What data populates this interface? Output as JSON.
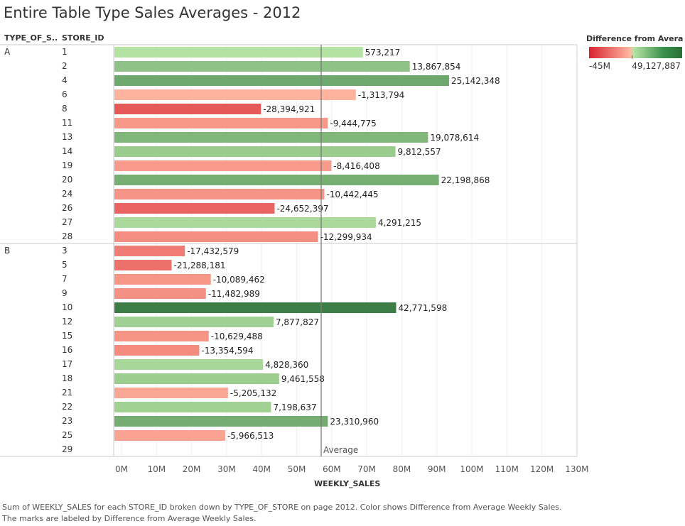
{
  "title": "Entire Table Type Sales Averages - 2012",
  "headers": {
    "type": "TYPE_OF_S..",
    "store": "STORE_ID"
  },
  "legend": {
    "title": "Difference from Averag..",
    "min_label": "-45M",
    "max_label": "49,127,887"
  },
  "caption": {
    "line1": "Sum of WEEKLY_SALES for each STORE_ID broken down by TYPE_OF_STORE on page 2012.  Color shows Difference from Average Weekly Sales.",
    "line2": "The marks are labeled by Difference from Average Weekly Sales."
  },
  "chart_data": {
    "type": "bar",
    "orientation": "horizontal",
    "title": "Entire Table Type Sales Averages - 2012",
    "xlabel": "WEEKLY_SALES",
    "xlim": [
      0,
      133000000
    ],
    "xticks": [
      0,
      10000000,
      20000000,
      30000000,
      40000000,
      50000000,
      60000000,
      70000000,
      80000000,
      90000000,
      100000000,
      110000000,
      120000000,
      130000000
    ],
    "xtick_labels": [
      "0M",
      "10M",
      "20M",
      "30M",
      "40M",
      "50M",
      "60M",
      "70M",
      "80M",
      "90M",
      "100M",
      "110M",
      "120M",
      "130M"
    ],
    "reference_line": {
      "label": "Average",
      "value": 57000000
    },
    "groups": [
      {
        "name": "A",
        "rows": [
          {
            "store": "1",
            "value": 68900000,
            "diff": 573217,
            "label": "573,217"
          },
          {
            "store": "2",
            "value": 82300000,
            "diff": 13867854,
            "label": "13,867,854"
          },
          {
            "store": "4",
            "value": 93500000,
            "diff": 25142348,
            "label": "25,142,348"
          },
          {
            "store": "6",
            "value": 66900000,
            "diff": -1313794,
            "label": "-1,313,794"
          },
          {
            "store": "8",
            "value": 39800000,
            "diff": -28394921,
            "label": "-28,394,921"
          },
          {
            "store": "11",
            "value": 58900000,
            "diff": -9444775,
            "label": "-9,444,775"
          },
          {
            "store": "13",
            "value": 87500000,
            "diff": 19078614,
            "label": "19,078,614"
          },
          {
            "store": "14",
            "value": 78200000,
            "diff": 9812557,
            "label": "9,812,557"
          },
          {
            "store": "19",
            "value": 59900000,
            "diff": -8416408,
            "label": "-8,416,408"
          },
          {
            "store": "20",
            "value": 90600000,
            "diff": 22198868,
            "label": "22,198,868"
          },
          {
            "store": "24",
            "value": 57900000,
            "diff": -10442445,
            "label": "-10,442,445"
          },
          {
            "store": "26",
            "value": 43700000,
            "diff": -24652397,
            "label": "-24,652,397"
          },
          {
            "store": "27",
            "value": 72600000,
            "diff": 4291215,
            "label": "4,291,215"
          },
          {
            "store": "28",
            "value": 56100000,
            "diff": -12299934,
            "label": "-12,299,934"
          }
        ]
      },
      {
        "name": "B",
        "rows": [
          {
            "store": "3",
            "value": 18100000,
            "diff": -17432579,
            "label": "-17,432,579"
          },
          {
            "store": "5",
            "value": 14300000,
            "diff": -21288181,
            "label": "-21,288,181"
          },
          {
            "store": "7",
            "value": 25500000,
            "diff": -10089462,
            "label": "-10,089,462"
          },
          {
            "store": "9",
            "value": 24100000,
            "diff": -11482989,
            "label": "-11,482,989"
          },
          {
            "store": "10",
            "value": 78400000,
            "diff": 42771598,
            "label": "42,771,598"
          },
          {
            "store": "12",
            "value": 43400000,
            "diff": 7877827,
            "label": "7,877,827"
          },
          {
            "store": "15",
            "value": 24900000,
            "diff": -10629488,
            "label": "-10,629,488"
          },
          {
            "store": "16",
            "value": 22200000,
            "diff": -13354594,
            "label": "-13,354,594"
          },
          {
            "store": "17",
            "value": 40400000,
            "diff": 4828360,
            "label": "4,828,360"
          },
          {
            "store": "18",
            "value": 45000000,
            "diff": 9461558,
            "label": "9,461,558"
          },
          {
            "store": "21",
            "value": 30400000,
            "diff": -5205132,
            "label": "-5,205,132"
          },
          {
            "store": "22",
            "value": 42700000,
            "diff": 7198637,
            "label": "7,198,637"
          },
          {
            "store": "23",
            "value": 58900000,
            "diff": 23310960,
            "label": "23,310,960"
          },
          {
            "store": "25",
            "value": 29600000,
            "diff": -5966513,
            "label": "-5,966,513"
          },
          {
            "store": "29",
            "value": null,
            "diff": null,
            "label": ""
          }
        ]
      }
    ],
    "color_scale": {
      "min": -45000000,
      "max": 49127887,
      "min_color": "#d7222f",
      "mid_low_color": "#ffb7a1",
      "mid_high_color": "#b6e3a4",
      "max_color": "#2a6f38"
    },
    "grid": true,
    "legend_position": "top-right"
  }
}
